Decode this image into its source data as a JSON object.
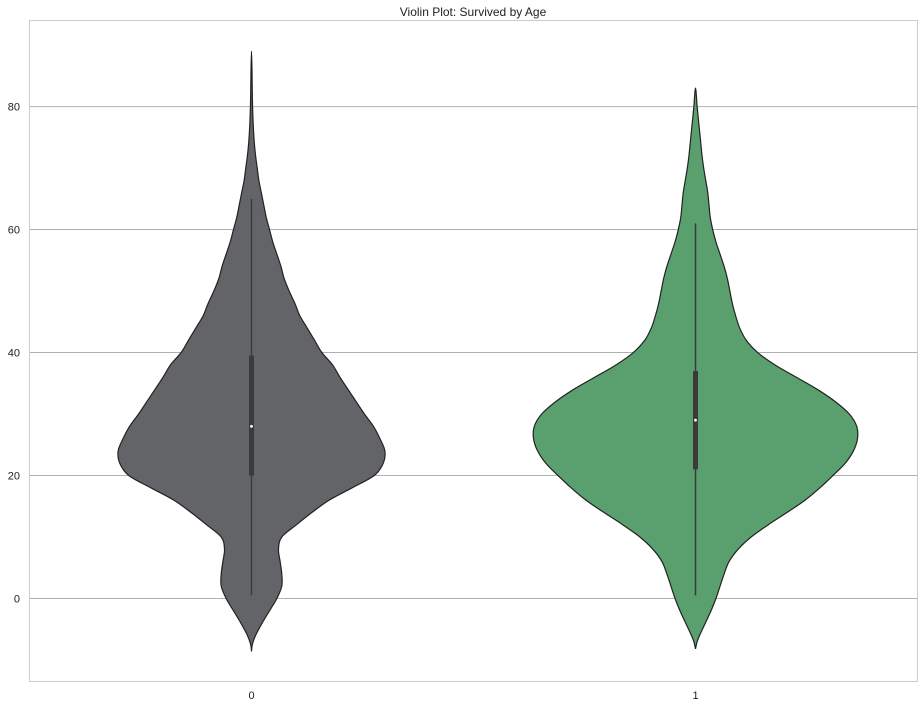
{
  "chart_data": {
    "type": "violin",
    "title": "Violin Plot: Survived by Age",
    "xlabel": "",
    "ylabel": "",
    "categories": [
      "0",
      "1"
    ],
    "ylim": [
      -13.5,
      94
    ],
    "yticks": [
      0,
      20,
      40,
      60,
      80
    ],
    "grid": "horizontal",
    "violins": [
      {
        "category": "0",
        "color": "#636467",
        "min": 0.5,
        "q1": 20,
        "median": 28,
        "q3": 39.5,
        "max": 65,
        "whisker_low": 0.5,
        "whisker_high": 65,
        "kde_extent": [
          -8.6,
          89
        ],
        "density": [
          [
            -8.6,
            0.0
          ],
          [
            -7.5,
            0.01
          ],
          [
            -6,
            0.05
          ],
          [
            -4,
            0.13
          ],
          [
            -2,
            0.22
          ],
          [
            0,
            0.31
          ],
          [
            2,
            0.37
          ],
          [
            4,
            0.37
          ],
          [
            6,
            0.35
          ],
          [
            8,
            0.33
          ],
          [
            10,
            0.37
          ],
          [
            12,
            0.55
          ],
          [
            14,
            0.74
          ],
          [
            16,
            0.95
          ],
          [
            18,
            1.23
          ],
          [
            20,
            1.5
          ],
          [
            22,
            1.61
          ],
          [
            24,
            1.63
          ],
          [
            26,
            1.57
          ],
          [
            28,
            1.49
          ],
          [
            30,
            1.38
          ],
          [
            32,
            1.28
          ],
          [
            34,
            1.18
          ],
          [
            36,
            1.08
          ],
          [
            38,
            0.99
          ],
          [
            40,
            0.86
          ],
          [
            42,
            0.77
          ],
          [
            44,
            0.68
          ],
          [
            46,
            0.59
          ],
          [
            48,
            0.53
          ],
          [
            50,
            0.46
          ],
          [
            52,
            0.4
          ],
          [
            54,
            0.36
          ],
          [
            56,
            0.31
          ],
          [
            58,
            0.26
          ],
          [
            60,
            0.22
          ],
          [
            62,
            0.18
          ],
          [
            64,
            0.15
          ],
          [
            66,
            0.12
          ],
          [
            68,
            0.09
          ],
          [
            70,
            0.07
          ],
          [
            72,
            0.05
          ],
          [
            74,
            0.035
          ],
          [
            76,
            0.025
          ],
          [
            78,
            0.018
          ],
          [
            80,
            0.013
          ],
          [
            82,
            0.01
          ],
          [
            84,
            0.008
          ],
          [
            86,
            0.006
          ],
          [
            89,
            0.0
          ]
        ]
      },
      {
        "category": "1",
        "color": "#5aa06e",
        "min": 0.5,
        "q1": 21,
        "median": 29,
        "q3": 37,
        "max": 61,
        "whisker_low": 0.5,
        "whisker_high": 61,
        "kde_extent": [
          -8.2,
          83
        ],
        "density": [
          [
            -8.2,
            0.0
          ],
          [
            -7,
            0.02
          ],
          [
            -6,
            0.05
          ],
          [
            -4,
            0.12
          ],
          [
            -2,
            0.19
          ],
          [
            0,
            0.25
          ],
          [
            2,
            0.3
          ],
          [
            4,
            0.35
          ],
          [
            6,
            0.41
          ],
          [
            8,
            0.52
          ],
          [
            10,
            0.68
          ],
          [
            12,
            0.89
          ],
          [
            14,
            1.12
          ],
          [
            16,
            1.34
          ],
          [
            18,
            1.52
          ],
          [
            20,
            1.68
          ],
          [
            22,
            1.83
          ],
          [
            24,
            1.93
          ],
          [
            26,
            1.98
          ],
          [
            28,
            1.97
          ],
          [
            30,
            1.88
          ],
          [
            32,
            1.71
          ],
          [
            34,
            1.49
          ],
          [
            36,
            1.23
          ],
          [
            38,
            0.97
          ],
          [
            40,
            0.76
          ],
          [
            42,
            0.62
          ],
          [
            44,
            0.54
          ],
          [
            46,
            0.49
          ],
          [
            48,
            0.45
          ],
          [
            50,
            0.42
          ],
          [
            52,
            0.39
          ],
          [
            54,
            0.35
          ],
          [
            56,
            0.3
          ],
          [
            58,
            0.25
          ],
          [
            60,
            0.21
          ],
          [
            62,
            0.18
          ],
          [
            64,
            0.165
          ],
          [
            66,
            0.15
          ],
          [
            68,
            0.125
          ],
          [
            70,
            0.1
          ],
          [
            72,
            0.08
          ],
          [
            74,
            0.065
          ],
          [
            76,
            0.05
          ],
          [
            78,
            0.035
          ],
          [
            80,
            0.02
          ],
          [
            83,
            0.0
          ]
        ]
      }
    ]
  }
}
